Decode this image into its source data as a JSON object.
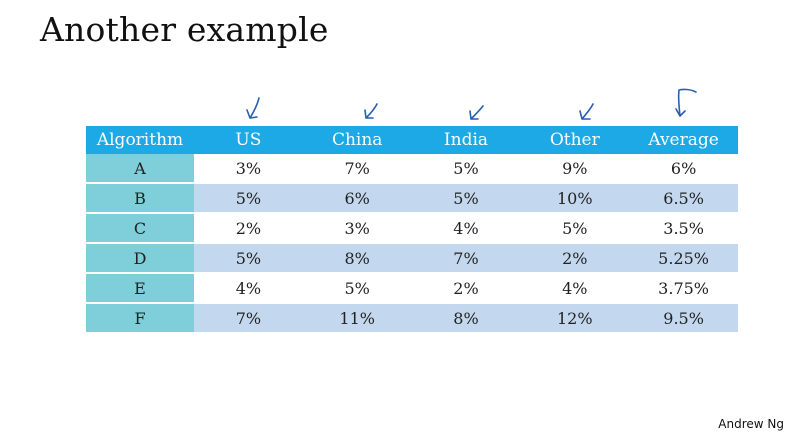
{
  "slide": {
    "title": "Another example",
    "credit": "Andrew Ng"
  },
  "table": {
    "headers": [
      "Algorithm",
      "US",
      "China",
      "India",
      "Other",
      "Average"
    ],
    "rows": [
      [
        "A",
        "3%",
        "7%",
        "5%",
        "9%",
        "6%"
      ],
      [
        "B",
        "5%",
        "6%",
        "5%",
        "10%",
        "6.5%"
      ],
      [
        "C",
        "2%",
        "3%",
        "4%",
        "5%",
        "3.5%"
      ],
      [
        "D",
        "5%",
        "8%",
        "7%",
        "2%",
        "5.25%"
      ],
      [
        "E",
        "4%",
        "5%",
        "2%",
        "4%",
        "3.75%"
      ],
      [
        "F",
        "7%",
        "11%",
        "8%",
        "12%",
        "9.5%"
      ]
    ]
  },
  "colors": {
    "header_bg": "#1ca9e6",
    "algorithm_col_bg": "#7ecfd9",
    "striped_row_bg": "#c3d8ef",
    "ink": "#2a5fb0"
  },
  "icons": [
    "check-mark-icon",
    "summation-mark-icon",
    "underline-mark-icon"
  ]
}
